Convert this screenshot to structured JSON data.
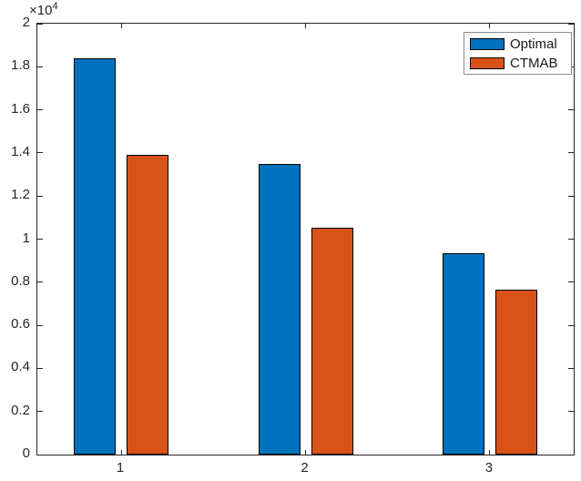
{
  "figure": {
    "background": "#ffffff",
    "axis_color": "#262626",
    "bar_edge_color": "#000000",
    "legend_border_color": "#8c8c8c",
    "y_axis_multiplier": {
      "base": "×10",
      "exponent": "4"
    }
  },
  "chart_data": {
    "type": "bar",
    "title": "",
    "xlabel": "",
    "ylabel": "",
    "categories": [
      "1",
      "2",
      "3"
    ],
    "xtick_values": [
      1,
      2,
      3
    ],
    "series": [
      {
        "name": "Optimal",
        "color": "#0072BD",
        "values": [
          18400,
          13500,
          9340
        ]
      },
      {
        "name": "CTMAB",
        "color": "#D95319",
        "values": [
          13900,
          10550,
          7650
        ]
      }
    ],
    "ylim": [
      0,
      20000
    ],
    "xlim": [
      0.545,
      3.455
    ],
    "ytick_values": [
      0,
      2000,
      4000,
      6000,
      8000,
      10000,
      12000,
      14000,
      16000,
      18000,
      20000
    ],
    "ytick_labels": [
      "0",
      "0.2",
      "0.4",
      "0.6",
      "0.8",
      "1",
      "1.2",
      "1.4",
      "1.6",
      "1.8",
      "2"
    ],
    "grid": false,
    "legend": {
      "position": "top-right",
      "entries": [
        "Optimal",
        "CTMAB"
      ]
    }
  }
}
